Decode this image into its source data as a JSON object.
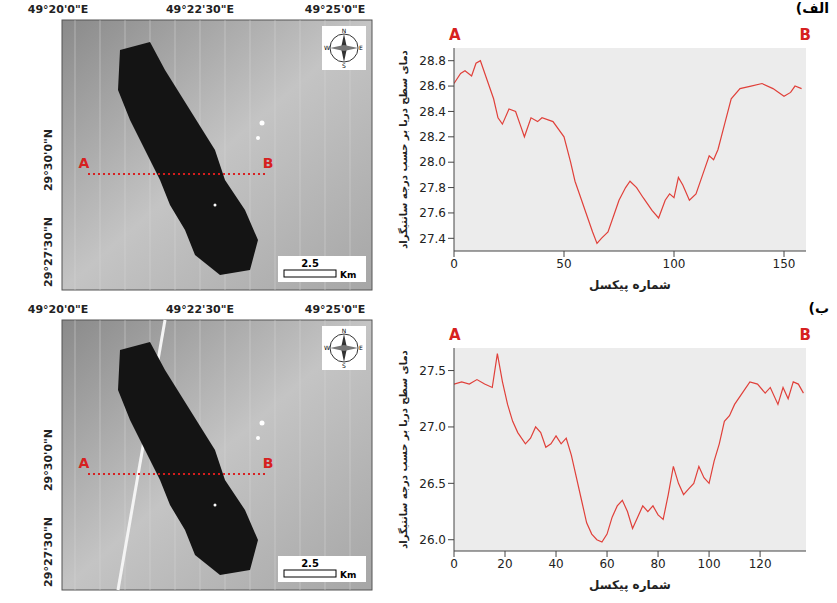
{
  "chart_data": [
    {
      "type": "line",
      "x_label": "شماره پیکسل",
      "y_label": "دمای سطح دریا بر حسب درجه سانتیگراد",
      "annotations": [
        "A",
        "B"
      ],
      "x": [
        0,
        3,
        5,
        8,
        10,
        12,
        15,
        18,
        20,
        22,
        25,
        28,
        30,
        32,
        35,
        38,
        40,
        45,
        50,
        53,
        55,
        58,
        60,
        63,
        65,
        67,
        70,
        73,
        75,
        78,
        80,
        83,
        86,
        90,
        93,
        96,
        98,
        100,
        102,
        104,
        107,
        110,
        113,
        116,
        118,
        120,
        123,
        126,
        130,
        135,
        140,
        145,
        150,
        153,
        155,
        158
      ],
      "values": [
        28.62,
        28.7,
        28.72,
        28.68,
        28.78,
        28.8,
        28.65,
        28.5,
        28.35,
        28.3,
        28.42,
        28.4,
        28.3,
        28.2,
        28.35,
        28.32,
        28.35,
        28.32,
        28.2,
        28.0,
        27.85,
        27.7,
        27.6,
        27.45,
        27.36,
        27.4,
        27.45,
        27.6,
        27.7,
        27.8,
        27.85,
        27.8,
        27.72,
        27.62,
        27.56,
        27.7,
        27.75,
        27.72,
        27.88,
        27.82,
        27.7,
        27.75,
        27.9,
        28.05,
        28.02,
        28.1,
        28.3,
        28.5,
        28.58,
        28.6,
        28.62,
        28.58,
        28.52,
        28.55,
        28.6,
        28.58
      ],
      "color": "#e0403a",
      "xlim": [
        0,
        160
      ],
      "xticks": [
        0,
        50,
        100,
        150
      ],
      "ylim": [
        27.3,
        28.9
      ],
      "yticks": [
        27.4,
        27.6,
        27.8,
        {
          "value": 28,
          "label": "28.0"
        },
        28.2,
        28.4,
        28.6,
        28.8
      ],
      "grid": false
    },
    {
      "type": "line",
      "x_label": "شماره پیکسل",
      "y_label": "دمای سطح دریا بر حسب درجه سانتیگراد",
      "annotations": [
        "A",
        "B"
      ],
      "x": [
        0,
        3,
        6,
        9,
        12,
        15,
        17,
        19,
        21,
        23,
        25,
        28,
        30,
        32,
        34,
        36,
        38,
        40,
        42,
        44,
        46,
        48,
        50,
        52,
        54,
        56,
        58,
        60,
        62,
        64,
        66,
        68,
        70,
        72,
        74,
        76,
        78,
        80,
        82,
        84,
        86,
        88,
        90,
        92,
        94,
        96,
        98,
        100,
        102,
        104,
        106,
        108,
        110,
        113,
        116,
        119,
        122,
        124,
        127,
        129,
        131,
        133,
        135,
        137
      ],
      "values": [
        27.38,
        27.4,
        27.38,
        27.42,
        27.38,
        27.35,
        27.65,
        27.4,
        27.2,
        27.05,
        26.95,
        26.85,
        26.9,
        27.0,
        26.95,
        26.82,
        26.85,
        26.92,
        26.85,
        26.9,
        26.75,
        26.55,
        26.35,
        26.15,
        26.05,
        26.0,
        25.98,
        26.05,
        26.2,
        26.3,
        26.35,
        26.25,
        26.1,
        26.2,
        26.3,
        26.25,
        26.3,
        26.22,
        26.18,
        26.4,
        26.65,
        26.5,
        26.4,
        26.45,
        26.5,
        26.65,
        26.55,
        26.5,
        26.7,
        26.85,
        27.05,
        27.1,
        27.2,
        27.3,
        27.4,
        27.38,
        27.3,
        27.35,
        27.2,
        27.35,
        27.25,
        27.4,
        27.38,
        27.3
      ],
      "color": "#e0403a",
      "xlim": [
        0,
        138
      ],
      "xticks": [
        0,
        20,
        40,
        60,
        80,
        100,
        120
      ],
      "ylim": [
        25.9,
        27.7
      ],
      "yticks": [
        {
          "value": 26,
          "label": "26.0"
        },
        26.5,
        {
          "value": 27,
          "label": "27.0"
        },
        27.5
      ],
      "grid": false
    }
  ],
  "figure": {
    "panel_labels": [
      "الف)",
      "ب)"
    ],
    "maps": [
      {
        "lon_labels": [
          "49°20'0\"E",
          "49°22'30\"E",
          "49°25'0\"E"
        ],
        "lat_labels": [
          "29°30'0\"N",
          "29°27'30\"N"
        ],
        "transect": [
          "A",
          "B"
        ],
        "scale_bar": {
          "value": 2.5,
          "unit": "Km"
        },
        "compass": [
          "N",
          "E",
          "S",
          "W"
        ]
      },
      {
        "lon_labels": [
          "49°20'0\"E",
          "49°22'30\"E",
          "49°25'0\"E"
        ],
        "lat_labels": [
          "29°30'0\"N",
          "29°27'30\"N"
        ],
        "transect": [
          "A",
          "B"
        ],
        "scale_bar": {
          "value": 2.5,
          "unit": "Km"
        },
        "compass": [
          "N",
          "E",
          "S",
          "W"
        ]
      }
    ]
  }
}
